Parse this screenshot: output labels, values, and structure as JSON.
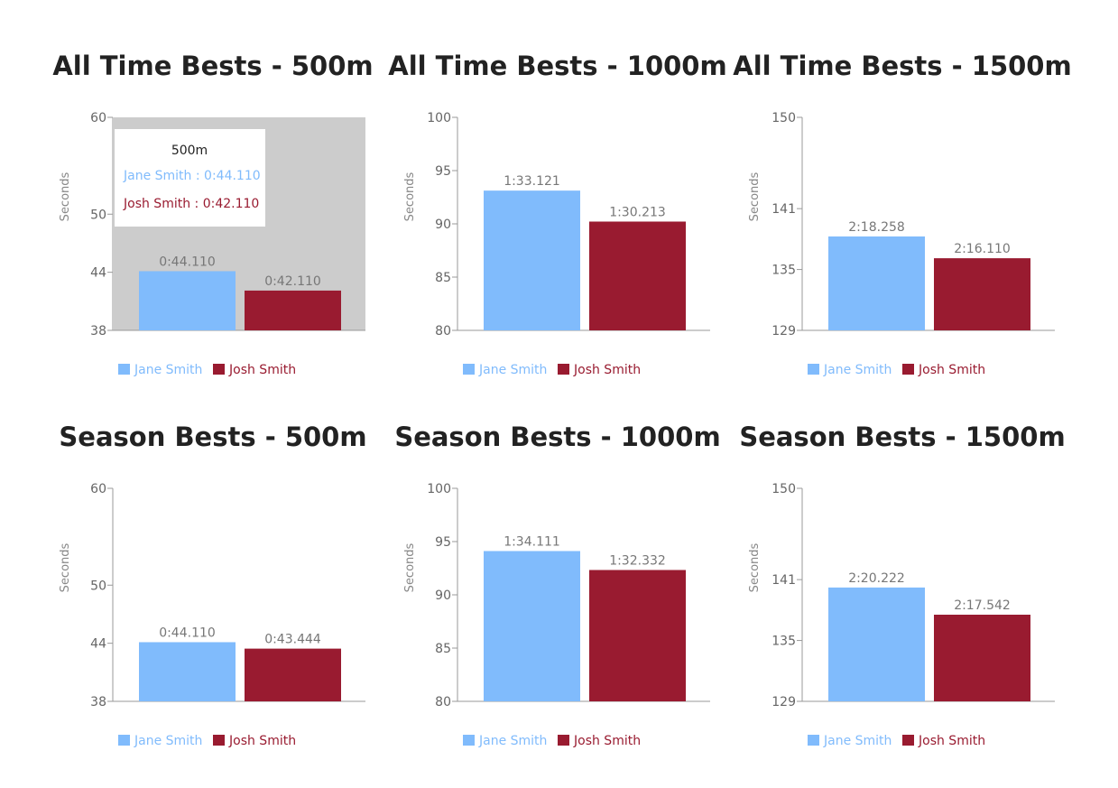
{
  "colors": {
    "jane": "#80bbfc",
    "josh": "#991b30",
    "axis": "#999999",
    "hover": "#cccccc"
  },
  "chart_data": [
    {
      "type": "bar",
      "title": "All Time Bests - 500m",
      "ylabel": "Seconds",
      "ylim": [
        38,
        60
      ],
      "yticks": [
        "38",
        "44",
        "50",
        "60"
      ],
      "yticks_values": [
        38,
        44,
        50,
        60
      ],
      "categories": [
        "500m"
      ],
      "series": [
        {
          "name": "Jane Smith",
          "values": [
            44.11
          ],
          "labels": [
            "0:44.110"
          ]
        },
        {
          "name": "Josh Smith",
          "values": [
            42.11
          ],
          "labels": [
            "0:42.110"
          ]
        }
      ],
      "legend": "bottom-left",
      "tooltip": {
        "title": "500m",
        "lines": [
          "Jane Smith : 0:44.110",
          "Josh Smith : 0:42.110"
        ]
      }
    },
    {
      "type": "bar",
      "title": "All Time Bests - 1000m",
      "ylabel": "Seconds",
      "ylim": [
        80,
        100
      ],
      "yticks": [
        "80",
        "85",
        "90",
        "95",
        "100"
      ],
      "yticks_values": [
        80,
        85,
        90,
        95,
        100
      ],
      "categories": [
        "1000m"
      ],
      "series": [
        {
          "name": "Jane Smith",
          "values": [
            93.121
          ],
          "labels": [
            "1:33.121"
          ]
        },
        {
          "name": "Josh Smith",
          "values": [
            90.213
          ],
          "labels": [
            "1:30.213"
          ]
        }
      ],
      "legend": "bottom-left"
    },
    {
      "type": "bar",
      "title": "All Time Bests - 1500m",
      "ylabel": "Seconds",
      "ylim": [
        129,
        150
      ],
      "yticks": [
        "129",
        "135",
        "141",
        "150"
      ],
      "yticks_values": [
        129,
        135,
        141,
        150
      ],
      "categories": [
        "1500m"
      ],
      "series": [
        {
          "name": "Jane Smith",
          "values": [
            138.258
          ],
          "labels": [
            "2:18.258"
          ]
        },
        {
          "name": "Josh Smith",
          "values": [
            136.11
          ],
          "labels": [
            "2:16.110"
          ]
        }
      ],
      "legend": "bottom-left"
    },
    {
      "type": "bar",
      "title": "Season Bests - 500m",
      "ylabel": "Seconds",
      "ylim": [
        38,
        60
      ],
      "yticks": [
        "38",
        "44",
        "50",
        "60"
      ],
      "yticks_values": [
        38,
        44,
        50,
        60
      ],
      "categories": [
        "500m"
      ],
      "series": [
        {
          "name": "Jane Smith",
          "values": [
            44.11
          ],
          "labels": [
            "0:44.110"
          ]
        },
        {
          "name": "Josh Smith",
          "values": [
            43.444
          ],
          "labels": [
            "0:43.444"
          ]
        }
      ],
      "legend": "bottom-left"
    },
    {
      "type": "bar",
      "title": "Season Bests - 1000m",
      "ylabel": "Seconds",
      "ylim": [
        80,
        100
      ],
      "yticks": [
        "80",
        "85",
        "90",
        "95",
        "100"
      ],
      "yticks_values": [
        80,
        85,
        90,
        95,
        100
      ],
      "categories": [
        "1000m"
      ],
      "series": [
        {
          "name": "Jane Smith",
          "values": [
            94.111
          ],
          "labels": [
            "1:34.111"
          ]
        },
        {
          "name": "Josh Smith",
          "values": [
            92.332
          ],
          "labels": [
            "1:32.332"
          ]
        }
      ],
      "legend": "bottom-left"
    },
    {
      "type": "bar",
      "title": "Season Bests - 1500m",
      "ylabel": "Seconds",
      "ylim": [
        129,
        150
      ],
      "yticks": [
        "129",
        "135",
        "141",
        "150"
      ],
      "yticks_values": [
        129,
        135,
        141,
        150
      ],
      "categories": [
        "1500m"
      ],
      "series": [
        {
          "name": "Jane Smith",
          "values": [
            140.222
          ],
          "labels": [
            "2:20.222"
          ]
        },
        {
          "name": "Josh Smith",
          "values": [
            137.542
          ],
          "labels": [
            "2:17.542"
          ]
        }
      ],
      "legend": "bottom-left"
    }
  ]
}
